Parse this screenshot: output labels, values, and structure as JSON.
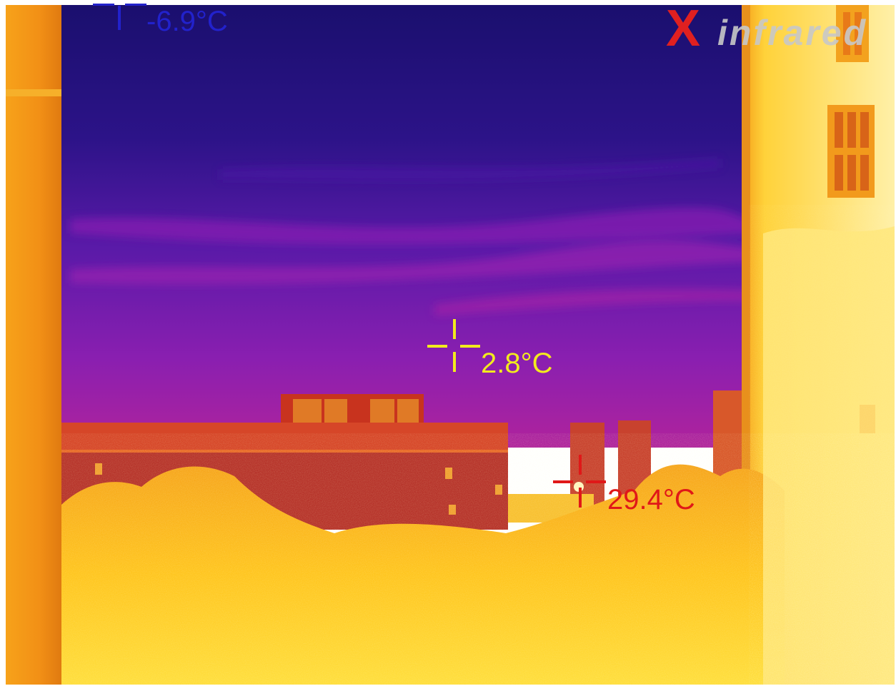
{
  "image": {
    "description_type": "thermal infrared camera frame",
    "palette": "ironbow",
    "colors": {
      "coldest": "#120a5a",
      "sky_top": "#1a0f6e",
      "sky_mid": "#4a1aa6",
      "sky_low": "#8a1fb0",
      "horizon": "#b0239c",
      "building_roof": "#d84a2a",
      "building_wall": "#c23a2a",
      "warm_orange": "#f08a14",
      "hot_yellow": "#ffd21a",
      "hottest": "#fff6c0"
    }
  },
  "measurements": {
    "min": {
      "label": "-6.9°C",
      "color": "#2222cc",
      "kind": "min-spot"
    },
    "center": {
      "label": "2.8°C",
      "color": "#f2ea1e",
      "kind": "center-spot"
    },
    "max": {
      "label": "29.4°C",
      "color": "#e01818",
      "kind": "max-spot"
    }
  },
  "logo": {
    "mark": "X",
    "text": "infrared",
    "mark_color": "#e02020",
    "text_color": "#c8c8c8"
  }
}
